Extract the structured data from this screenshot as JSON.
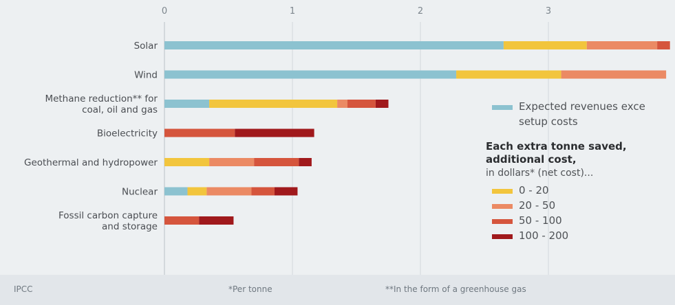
{
  "chart_data": {
    "type": "bar",
    "stacked": true,
    "orientation": "horizontal",
    "categories": [
      "Solar",
      "Wind",
      "Methane reduction** for coal, oil and gas",
      "Bioelectricity",
      "Geothermal and hydropower",
      "Nuclear",
      "Fossil carbon capture and storage"
    ],
    "series": [
      {
        "name": "Expected revenues exceed setup costs",
        "color": "#8cc2d0",
        "values": [
          2.65,
          2.28,
          0.35,
          0,
          0,
          0.18,
          0
        ]
      },
      {
        "name": "0 - 20",
        "color": "#f2c53d",
        "values": [
          0.65,
          0.82,
          1.0,
          0,
          0.35,
          0.15,
          0
        ]
      },
      {
        "name": "20 - 50",
        "color": "#eb8a64",
        "values": [
          0.55,
          0.82,
          0.08,
          0,
          0.35,
          0.35,
          0
        ]
      },
      {
        "name": "50 - 100",
        "color": "#d5553d",
        "values": [
          0.1,
          0,
          0.22,
          0.55,
          0.35,
          0.18,
          0.27
        ]
      },
      {
        "name": "100 - 200",
        "color": "#a0191c",
        "values": [
          0,
          0,
          0.1,
          0.62,
          0.1,
          0.18,
          0.27
        ]
      }
    ],
    "xlim": [
      0,
      4
    ],
    "xticks": [
      0,
      1,
      2,
      3
    ],
    "grid": true,
    "legend": {
      "position": "right",
      "first_label": [
        "Expected revenues exce",
        "setup costs"
      ],
      "heading": [
        "Each extra tonne saved,",
        "additional cost,"
      ],
      "subheading": "in dollars* (net cost)..."
    },
    "notes": {
      "source": "IPCC",
      "footnote1": "*Per tonne",
      "footnote2": "**In the form of a greenhouse gas"
    }
  }
}
